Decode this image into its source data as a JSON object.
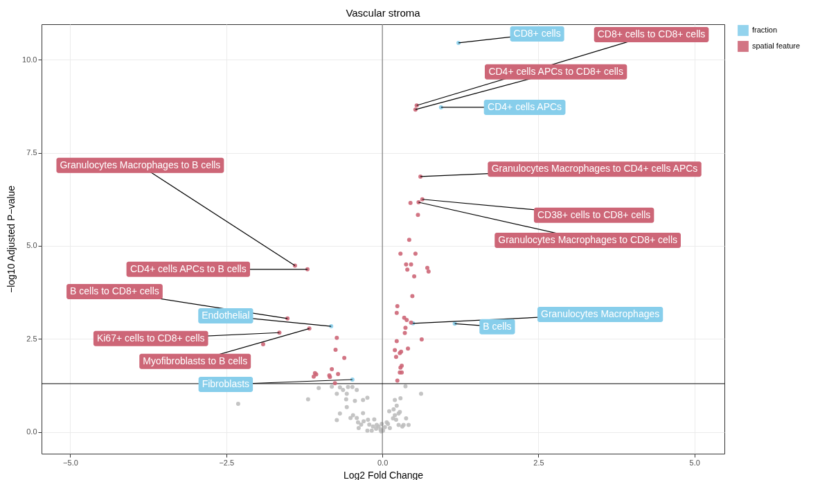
{
  "chart_data": {
    "type": "scatter",
    "title": "Vascular stroma",
    "xlabel": "Log2 Fold Change",
    "ylabel": "−log10 Adjusted P−value",
    "xlim": [
      -5.46,
      5.48
    ],
    "ylim": [
      -0.58,
      10.95
    ],
    "xticks": [
      {
        "value": -5,
        "label": "−5.0"
      },
      {
        "value": -2.5,
        "label": "−2.5"
      },
      {
        "value": 0,
        "label": "0.0"
      },
      2.5,
      {
        "value": 5,
        "label": "5.0"
      }
    ],
    "yticks": [
      {
        "value": 0,
        "label": "0.0"
      },
      2.5,
      {
        "value": 5,
        "label": "5.0"
      },
      7.5,
      {
        "value": 10,
        "label": "10.0"
      }
    ],
    "grid": true,
    "legend": "right",
    "marker": "circle",
    "ref_lines": [
      {
        "axis": "x",
        "value": 0,
        "color": "#666666"
      },
      {
        "axis": "y",
        "value": 1.3,
        "color": "#000000"
      }
    ],
    "series": [
      {
        "name": "fraction",
        "color": "#87ceeb",
        "x": [
          1.22,
          0.94,
          0.49,
          1.16,
          -0.82,
          -0.48
        ],
        "values": [
          10.45,
          8.72,
          2.92,
          2.91,
          2.84,
          1.41
        ],
        "value_labels": [
          "CD8+ cells",
          "CD4+ cells APCs",
          "Granulocytes Macrophages",
          "B cells",
          "Endothelial",
          "Fibroblasts"
        ]
      },
      {
        "name": "spatial feature",
        "color": "#cd6677",
        "x": [
          0.55,
          0.53,
          0.61,
          0.64,
          0.58,
          -1.4,
          -1.2,
          -1.52,
          -1.65,
          -1.17,
          0.45,
          0.57,
          0.43,
          0.29,
          0.53,
          0.38,
          0.4,
          0.46,
          0.51,
          0.72,
          0.74,
          0.48,
          0.24,
          0.23,
          0.35,
          0.39,
          0.46,
          0.37,
          0.36,
          0.63,
          0.23,
          0.2,
          0.28,
          0.3,
          0.41,
          0.22,
          0.31,
          0.29,
          0.28,
          0.31,
          0.24,
          -1.91,
          -0.73,
          -0.75,
          -0.61,
          -0.81,
          -1.08,
          -1.06,
          -1.1,
          -0.85,
          -0.84,
          -0.71,
          -0.76
        ],
        "values": [
          8.77,
          8.66,
          6.86,
          6.25,
          6.17,
          4.47,
          4.37,
          3.05,
          2.67,
          2.78,
          6.15,
          5.83,
          5.16,
          4.79,
          4.79,
          4.5,
          4.36,
          4.5,
          4.18,
          4.41,
          4.31,
          3.65,
          3.38,
          3.2,
          3.07,
          3.01,
          2.94,
          2.8,
          2.66,
          2.49,
          2.44,
          2.2,
          2.12,
          2.16,
          2.24,
          2.02,
          1.78,
          1.73,
          1.6,
          1.6,
          1.38,
          2.36,
          2.53,
          2.21,
          1.99,
          1.69,
          1.58,
          1.55,
          1.49,
          1.52,
          1.48,
          1.56,
          1.31
        ],
        "value_labels": [
          "CD8+ cells to CD8+ cells",
          "CD4+ cells APCs to CD8+ cells",
          "Granulocytes Macrophages to CD4+ cells APCs",
          "CD38+ cells to CD8+ cells",
          "Granulocytes Macrophages to CD8+ cells",
          "Granulocytes Macrophages to B cells",
          "CD4+ cells APCs to B cells",
          "B cells to CD8+ cells",
          "Ki67+ cells to CD8+ cells",
          "Myofibroblasts to B cells",
          null,
          null,
          null,
          null,
          null,
          null,
          null,
          null,
          null,
          null,
          null,
          null,
          null,
          null,
          null,
          null,
          null,
          null,
          null,
          null,
          null,
          null,
          null,
          null,
          null,
          null,
          null,
          null,
          null,
          null,
          null,
          null,
          null,
          null,
          null,
          null,
          null,
          null,
          null,
          null,
          null,
          null,
          null
        ]
      },
      {
        "color": "#bebebe",
        "x": [
          -2.31,
          -1.19,
          -1.02,
          -0.81,
          -0.73,
          -0.68,
          -0.63,
          -0.57,
          -0.55,
          -0.48,
          -0.41,
          -0.58,
          -0.44,
          -0.57,
          -0.31,
          -0.24,
          -0.73,
          -0.68,
          -0.51,
          -0.47,
          -0.41,
          -0.39,
          -0.31,
          -0.3,
          -0.23,
          -0.21,
          -0.15,
          -0.1,
          -0.17,
          -0.06,
          -0.34,
          -0.38,
          -0.24,
          -0.02,
          -0.13,
          -0.03,
          0.01,
          0.04,
          0.09,
          0.12,
          0.17,
          0.22,
          0.26,
          0.32,
          0.34,
          0.38,
          0.2,
          0.26,
          0.11,
          0.28,
          0.18,
          0.23,
          0.29,
          0.2,
          0.37,
          0.62,
          0.07,
          -0.01,
          -0.09,
          0.42
        ],
        "values": [
          0.76,
          0.88,
          1.18,
          1.22,
          1.03,
          1.2,
          1.13,
          1.03,
          1.21,
          1.21,
          1.13,
          0.88,
          0.84,
          0.67,
          0.86,
          0.92,
          0.32,
          0.5,
          0.38,
          0.45,
          0.38,
          0.26,
          0.51,
          0.29,
          0.33,
          0.2,
          0.15,
          0.09,
          0.04,
          0.15,
          0.2,
          0.11,
          0.04,
          0.02,
          0.34,
          0.07,
          0.04,
          0.13,
          0.22,
          0.11,
          0.37,
          0.33,
          0.19,
          0.15,
          0.19,
          0.37,
          0.45,
          0.5,
          0.56,
          0.54,
          0.61,
          0.71,
          0.91,
          0.86,
          1.23,
          1.03,
          0.26,
          0.22,
          0.19,
          0.19
        ]
      }
    ]
  }
}
